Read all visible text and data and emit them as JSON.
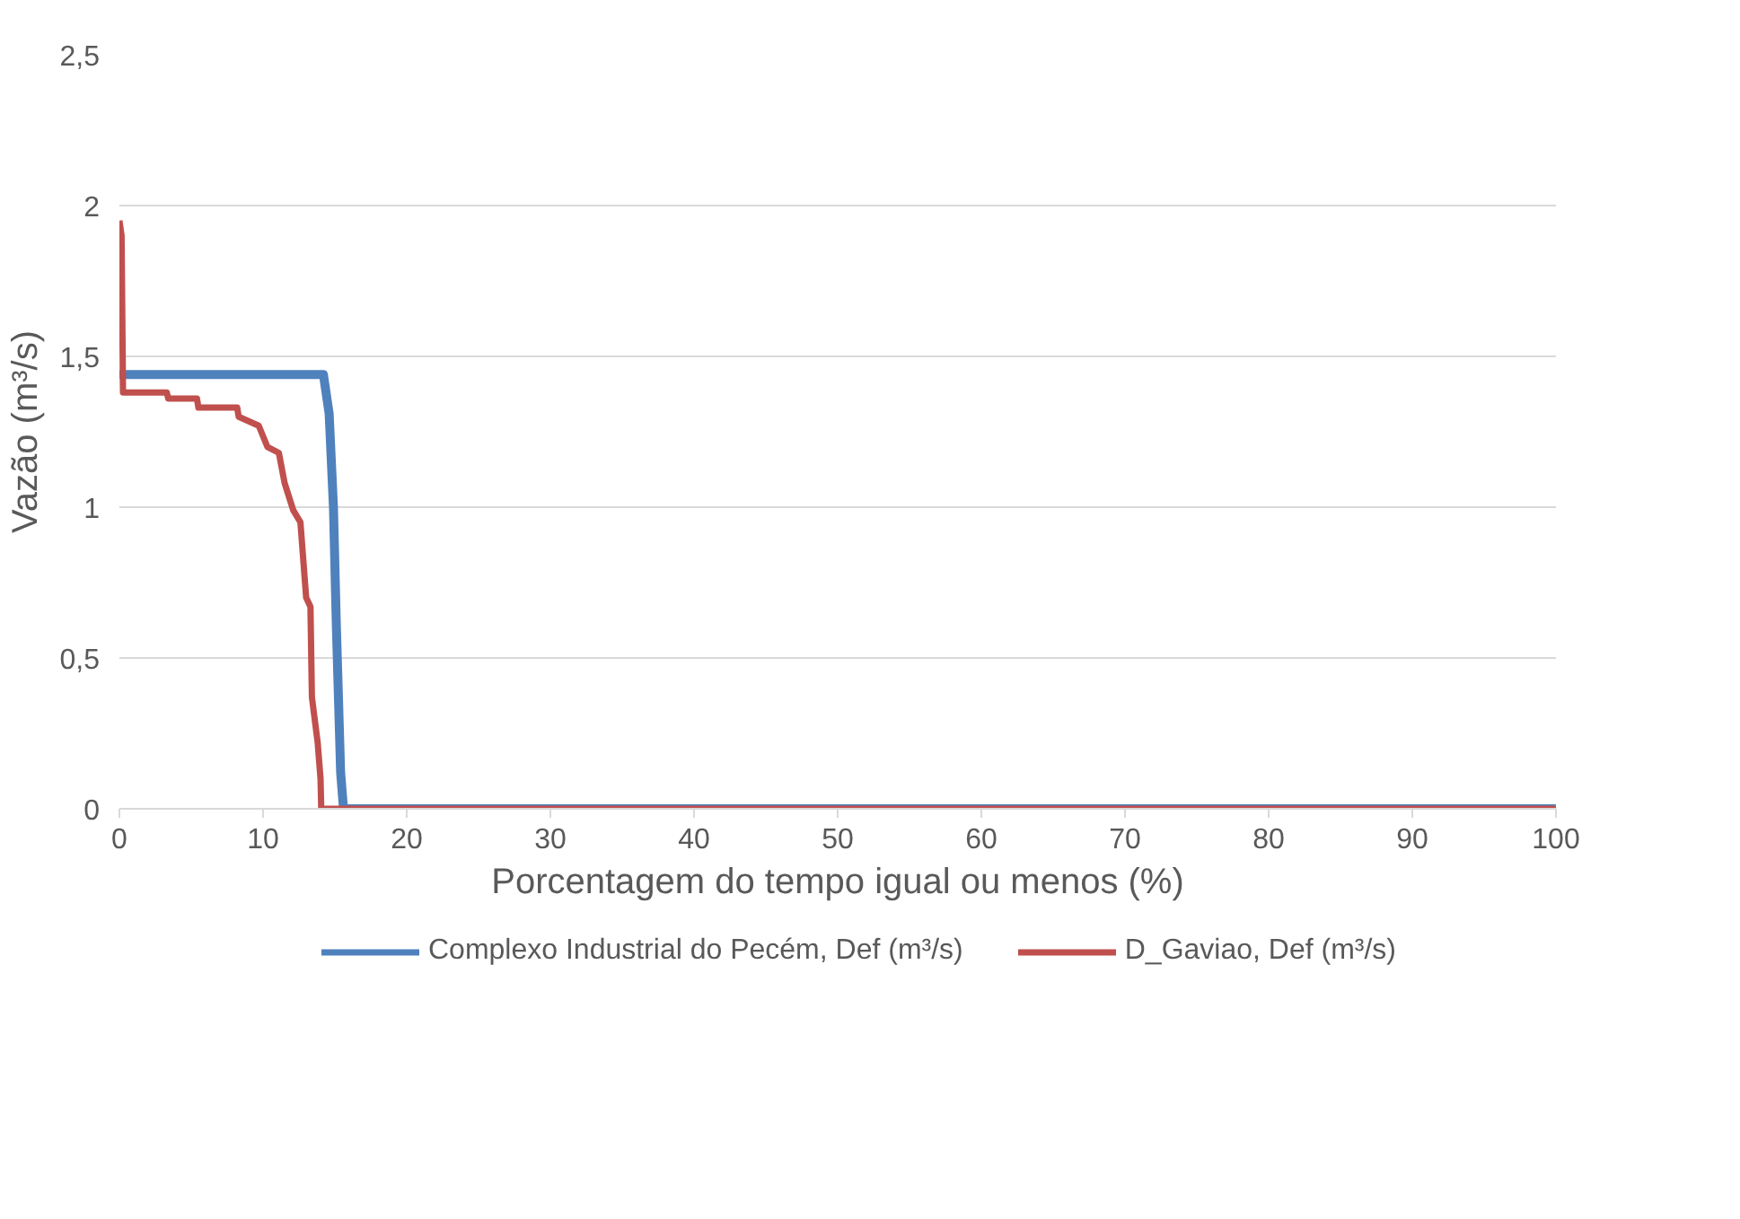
{
  "chart_data": {
    "type": "line",
    "xlabel": "Porcentagem do tempo igual ou menos (%)",
    "ylabel": "Vazão (m³/s)",
    "xlim": [
      0,
      100
    ],
    "ylim": [
      0,
      2.5
    ],
    "xticks": [
      0,
      10,
      20,
      30,
      40,
      50,
      60,
      70,
      80,
      90,
      100
    ],
    "yticks": [
      {
        "value": 0,
        "label": "0"
      },
      {
        "value": 0.5,
        "label": "0,5"
      },
      {
        "value": 1,
        "label": "1"
      },
      {
        "value": 1.5,
        "label": "1,5"
      },
      {
        "value": 2,
        "label": "2"
      },
      {
        "value": 2.5,
        "label": "2,5"
      }
    ],
    "grid": "y",
    "legend": "bottom",
    "marker": "none",
    "line_style": "solid",
    "series": [
      {
        "name": "Complexo Industrial do Pecém, Def (m³/s)",
        "color": "#4f81bd",
        "x": [
          0,
          14.2,
          14.6,
          14.9,
          15.1,
          15.4,
          15.6,
          100
        ],
        "values": [
          1.44,
          1.44,
          1.31,
          1.0,
          0.61,
          0.12,
          0,
          0
        ]
      },
      {
        "name": "D_Gaviao, Def (m³/s)",
        "color": "#c0504d",
        "x": [
          0,
          0.15,
          0.25,
          3.3,
          3.4,
          5.4,
          5.5,
          8.2,
          8.3,
          9.7,
          10.3,
          11.1,
          11.5,
          12.1,
          12.6,
          13.0,
          13.3,
          13.4,
          13.8,
          14.0,
          14.05,
          100
        ],
        "values": [
          1.95,
          1.9,
          1.38,
          1.38,
          1.36,
          1.36,
          1.33,
          1.33,
          1.3,
          1.27,
          1.2,
          1.18,
          1.08,
          0.99,
          0.95,
          0.7,
          0.67,
          0.37,
          0.22,
          0.1,
          0,
          0
        ]
      }
    ]
  }
}
